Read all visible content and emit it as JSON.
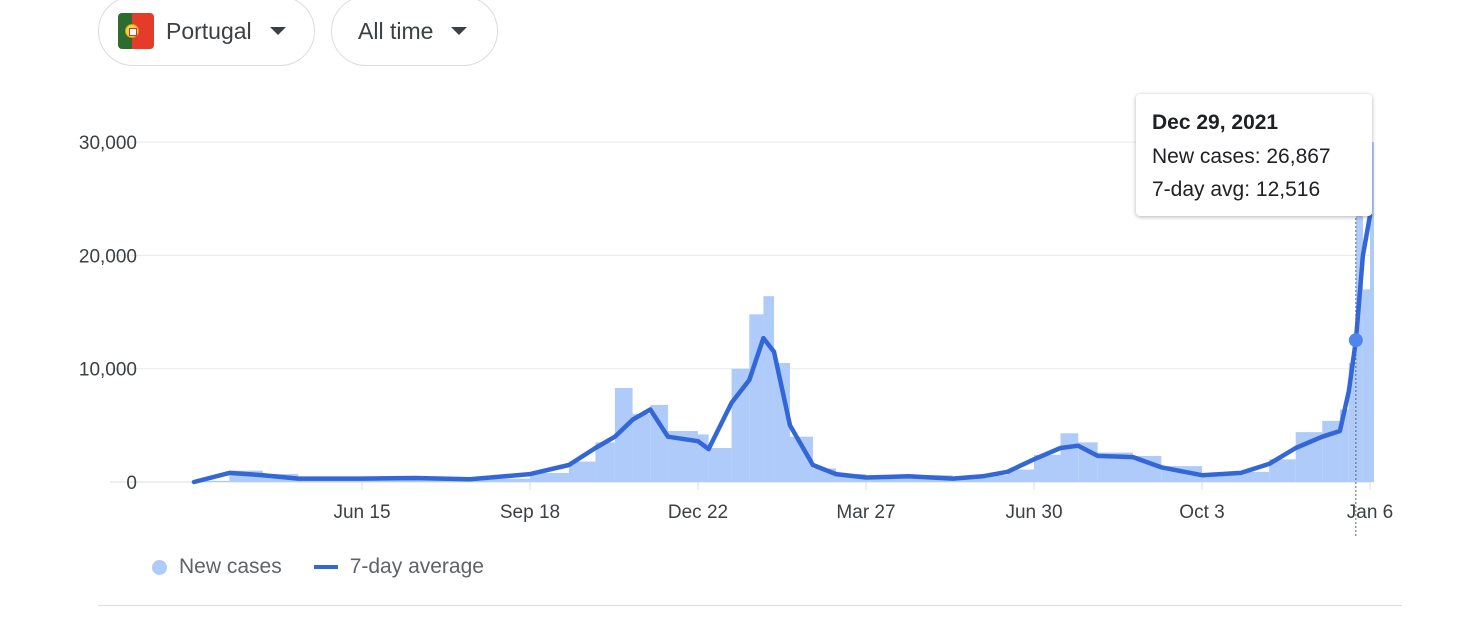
{
  "filters": {
    "country": "Portugal",
    "country_flag_icon": "portugal-flag-icon",
    "range": "All time"
  },
  "colors": {
    "bars": "#aecbfa",
    "line": "#3366d6",
    "grid": "#e8eaed"
  },
  "tooltip": {
    "date": "Dec 29, 2021",
    "new_cases": "New cases: 26,867",
    "avg": "7-day avg: 12,516"
  },
  "legend": {
    "new_cases": "New cases",
    "avg": "7-day average"
  },
  "chart_data": {
    "type": "bar+line",
    "title": "",
    "ylim": [
      0,
      30000
    ],
    "yticks": [
      {
        "v": 0,
        "label": "0"
      },
      {
        "v": 10000,
        "label": "10,000"
      },
      {
        "v": 20000,
        "label": "20,000"
      },
      {
        "v": 30000,
        "label": "30,000"
      }
    ],
    "xticks": [
      {
        "d": "2020-06-15",
        "label": "Jun 15"
      },
      {
        "d": "2020-09-18",
        "label": "Sep 18"
      },
      {
        "d": "2020-12-22",
        "label": "Dec 22"
      },
      {
        "d": "2021-03-27",
        "label": "Mar 27"
      },
      {
        "d": "2021-06-30",
        "label": "Jun 30"
      },
      {
        "d": "2021-10-03",
        "label": "Oct 3"
      },
      {
        "d": "2022-01-06",
        "label": "Jan 6"
      }
    ],
    "grid": true,
    "legend_position": "bottom-left",
    "highlight": {
      "date": "2021-12-29",
      "new_cases": 26867,
      "avg": 12516
    },
    "series": [
      {
        "name": "New cases",
        "points": [
          [
            "2020-03-12",
            100
          ],
          [
            "2020-04-01",
            1000
          ],
          [
            "2020-04-20",
            700
          ],
          [
            "2020-05-10",
            350
          ],
          [
            "2020-06-15",
            350
          ],
          [
            "2020-07-15",
            400
          ],
          [
            "2020-08-15",
            300
          ],
          [
            "2020-09-18",
            800
          ],
          [
            "2020-10-10",
            1800
          ],
          [
            "2020-10-25",
            3500
          ],
          [
            "2020-11-05",
            8300
          ],
          [
            "2020-11-15",
            6000
          ],
          [
            "2020-11-25",
            6800
          ],
          [
            "2020-12-05",
            4500
          ],
          [
            "2020-12-22",
            4200
          ],
          [
            "2020-12-28",
            3000
          ],
          [
            "2021-01-10",
            10000
          ],
          [
            "2021-01-20",
            14800
          ],
          [
            "2021-01-28",
            16400
          ],
          [
            "2021-02-03",
            10500
          ],
          [
            "2021-02-12",
            4000
          ],
          [
            "2021-02-25",
            1200
          ],
          [
            "2021-03-10",
            700
          ],
          [
            "2021-03-27",
            450
          ],
          [
            "2021-04-20",
            600
          ],
          [
            "2021-05-15",
            350
          ],
          [
            "2021-06-01",
            600
          ],
          [
            "2021-06-15",
            1100
          ],
          [
            "2021-06-30",
            2400
          ],
          [
            "2021-07-15",
            4300
          ],
          [
            "2021-07-25",
            3500
          ],
          [
            "2021-08-05",
            2600
          ],
          [
            "2021-08-25",
            2300
          ],
          [
            "2021-09-10",
            1400
          ],
          [
            "2021-10-03",
            700
          ],
          [
            "2021-10-25",
            900
          ],
          [
            "2021-11-10",
            2000
          ],
          [
            "2021-11-25",
            4400
          ],
          [
            "2021-12-10",
            5400
          ],
          [
            "2021-12-20",
            6400
          ],
          [
            "2021-12-25",
            10500
          ],
          [
            "2021-12-29",
            26867
          ],
          [
            "2022-01-02",
            17000
          ],
          [
            "2022-01-06",
            30000
          ]
        ]
      },
      {
        "name": "7-day average",
        "points": [
          [
            "2020-03-12",
            0
          ],
          [
            "2020-04-01",
            800
          ],
          [
            "2020-04-20",
            600
          ],
          [
            "2020-05-10",
            300
          ],
          [
            "2020-06-15",
            300
          ],
          [
            "2020-07-15",
            350
          ],
          [
            "2020-08-15",
            250
          ],
          [
            "2020-09-18",
            700
          ],
          [
            "2020-10-10",
            1500
          ],
          [
            "2020-10-25",
            3000
          ],
          [
            "2020-11-05",
            4000
          ],
          [
            "2020-11-15",
            5500
          ],
          [
            "2020-11-25",
            6400
          ],
          [
            "2020-12-05",
            4000
          ],
          [
            "2020-12-22",
            3600
          ],
          [
            "2020-12-28",
            2900
          ],
          [
            "2021-01-10",
            7000
          ],
          [
            "2021-01-20",
            9000
          ],
          [
            "2021-01-28",
            12700
          ],
          [
            "2021-02-03",
            11500
          ],
          [
            "2021-02-12",
            5000
          ],
          [
            "2021-02-25",
            1500
          ],
          [
            "2021-03-10",
            700
          ],
          [
            "2021-03-27",
            400
          ],
          [
            "2021-04-20",
            500
          ],
          [
            "2021-05-15",
            300
          ],
          [
            "2021-06-01",
            500
          ],
          [
            "2021-06-15",
            900
          ],
          [
            "2021-06-30",
            2000
          ],
          [
            "2021-07-15",
            3000
          ],
          [
            "2021-07-25",
            3200
          ],
          [
            "2021-08-05",
            2300
          ],
          [
            "2021-08-25",
            2200
          ],
          [
            "2021-09-10",
            1300
          ],
          [
            "2021-10-03",
            600
          ],
          [
            "2021-10-25",
            800
          ],
          [
            "2021-11-10",
            1600
          ],
          [
            "2021-11-25",
            3000
          ],
          [
            "2021-12-10",
            4000
          ],
          [
            "2021-12-20",
            4500
          ],
          [
            "2021-12-25",
            8000
          ],
          [
            "2021-12-29",
            12516
          ],
          [
            "2022-01-02",
            20000
          ],
          [
            "2022-01-06",
            23500
          ]
        ]
      }
    ]
  }
}
